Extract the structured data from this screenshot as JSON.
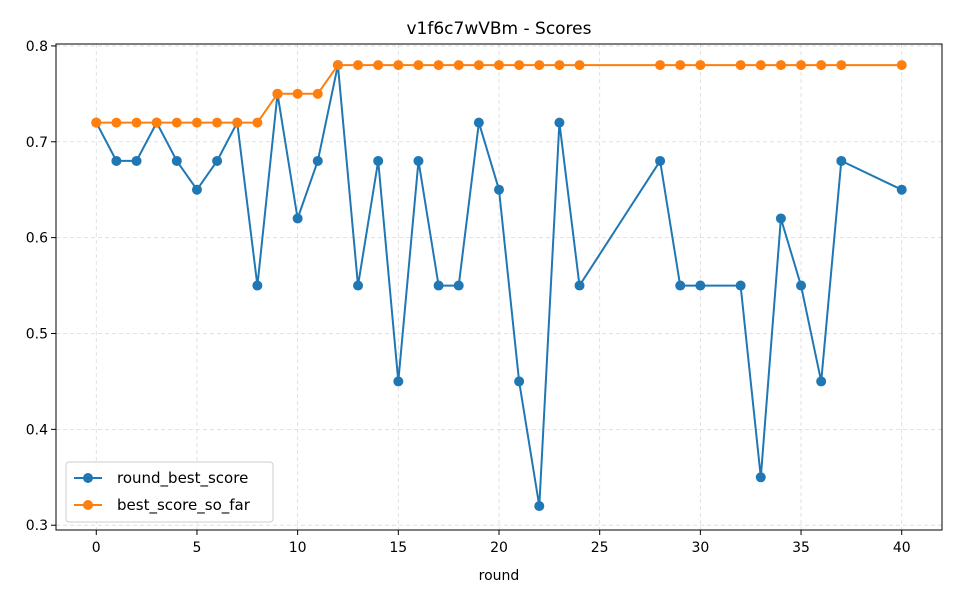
{
  "chart_data": {
    "type": "line",
    "title": "v1f6c7wVBm - Scores",
    "xlabel": "round",
    "ylabel": "",
    "xlim": [
      -2,
      42
    ],
    "ylim": [
      0.295,
      0.802
    ],
    "xticks": [
      0,
      5,
      10,
      15,
      20,
      25,
      30,
      35,
      40
    ],
    "yticks": [
      0.3,
      0.4,
      0.5,
      0.6,
      0.7,
      0.8
    ],
    "grid": true,
    "legend_position": "lower-left",
    "series": [
      {
        "name": "round_best_score",
        "color": "#1f77b4",
        "x": [
          0,
          1,
          2,
          3,
          4,
          5,
          6,
          7,
          8,
          9,
          10,
          11,
          12,
          13,
          14,
          15,
          16,
          17,
          18,
          19,
          20,
          21,
          22,
          23,
          24,
          28,
          29,
          30,
          32,
          33,
          34,
          35,
          36,
          37,
          40
        ],
        "y": [
          0.72,
          0.68,
          0.68,
          0.72,
          0.68,
          0.65,
          0.68,
          0.72,
          0.55,
          0.75,
          0.62,
          0.68,
          0.78,
          0.55,
          0.68,
          0.45,
          0.68,
          0.55,
          0.55,
          0.72,
          0.65,
          0.45,
          0.32,
          0.72,
          0.55,
          0.68,
          0.55,
          0.55,
          0.55,
          0.35,
          0.62,
          0.55,
          0.45,
          0.68,
          0.65
        ]
      },
      {
        "name": "best_score_so_far",
        "color": "#ff7f0e",
        "x": [
          0,
          1,
          2,
          3,
          4,
          5,
          6,
          7,
          8,
          9,
          10,
          11,
          12,
          13,
          14,
          15,
          16,
          17,
          18,
          19,
          20,
          21,
          22,
          23,
          24,
          28,
          29,
          30,
          32,
          33,
          34,
          35,
          36,
          37,
          40
        ],
        "y": [
          0.72,
          0.72,
          0.72,
          0.72,
          0.72,
          0.72,
          0.72,
          0.72,
          0.72,
          0.75,
          0.75,
          0.75,
          0.78,
          0.78,
          0.78,
          0.78,
          0.78,
          0.78,
          0.78,
          0.78,
          0.78,
          0.78,
          0.78,
          0.78,
          0.78,
          0.78,
          0.78,
          0.78,
          0.78,
          0.78,
          0.78,
          0.78,
          0.78,
          0.78,
          0.78
        ]
      }
    ]
  }
}
